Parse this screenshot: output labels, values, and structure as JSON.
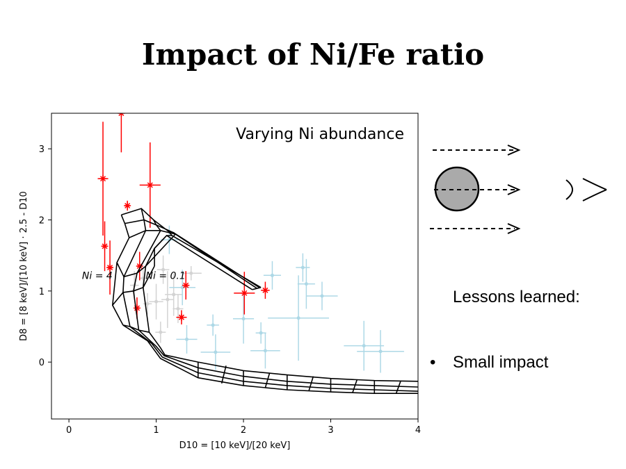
{
  "slide": {
    "title": "Impact of Ni/Fe ratio",
    "lessons_heading": "Lessons learned:",
    "bullets": [
      "Small impact"
    ],
    "bullet_glyph": "•"
  },
  "diagram": {
    "icons": [
      "dashed-arrow-icon",
      "dashed-arrow-icon",
      "dashed-arrow-icon",
      "sphere-icon",
      "eye-icon"
    ],
    "sphere_color": "#aaaaaa"
  },
  "chart_data": {
    "type": "scatter",
    "title": "Varying Ni abundance",
    "xlabel": "D10 = [10 keV]/[20 keV]",
    "ylabel": "D8 = [8 keV]/[10 keV] · 2.5 - D10",
    "xlim": [
      -0.2,
      4.0
    ],
    "ylim": [
      -0.8,
      3.5
    ],
    "xticks": [
      "0",
      "1",
      "2",
      "3",
      "4"
    ],
    "yticks": [
      "0",
      "1",
      "2",
      "3"
    ],
    "annotations": [
      {
        "text": "Ni = 4",
        "x": 0.15,
        "y": 1.22
      },
      {
        "text": "Ni = 0.1",
        "x": 0.88,
        "y": 1.22
      }
    ],
    "colors": {
      "red": "#ff0000",
      "lightblue": "#add8e6",
      "gray": "#d3d3d3",
      "grid": "#000000"
    },
    "series": [
      {
        "color": "red",
        "points": [
          {
            "x": 0.6,
            "y": 3.5,
            "xerr": 0,
            "yerr": 0.55
          },
          {
            "x": 0.39,
            "y": 2.58,
            "xerr": 0.06,
            "yerr": 0.8
          },
          {
            "x": 0.67,
            "y": 2.2,
            "xerr": 0.03,
            "yerr": 0.07
          },
          {
            "x": 0.93,
            "y": 2.49,
            "xerr": 0.12,
            "yerr": 0.6
          },
          {
            "x": 0.41,
            "y": 1.63,
            "xerr": 0.03,
            "yerr": 0.35
          },
          {
            "x": 0.47,
            "y": 1.33,
            "xerr": 0.03,
            "yerr": 0.38
          },
          {
            "x": 0.81,
            "y": 1.35,
            "xerr": 0.03,
            "yerr": 0.2
          },
          {
            "x": 1.34,
            "y": 1.08,
            "xerr": 0.04,
            "yerr": 0.2
          },
          {
            "x": 0.78,
            "y": 0.76,
            "xerr": 0.03,
            "yerr": 0.15
          },
          {
            "x": 1.29,
            "y": 0.63,
            "xerr": 0.06,
            "yerr": 0.1
          },
          {
            "x": 2.01,
            "y": 0.97,
            "xerr": 0.12,
            "yerr": 0.3
          },
          {
            "x": 2.25,
            "y": 1.01,
            "xerr": 0.05,
            "yerr": 0.12
          }
        ]
      },
      {
        "color": "lightblue",
        "points": [
          {
            "x": 1.15,
            "y": 1.72,
            "xerr": 0.1,
            "yerr": 0.2
          },
          {
            "x": 1.3,
            "y": 1.05,
            "xerr": 0.15,
            "yerr": 0.25
          },
          {
            "x": 1.35,
            "y": 0.32,
            "xerr": 0.12,
            "yerr": 0.2
          },
          {
            "x": 1.65,
            "y": 0.52,
            "xerr": 0.07,
            "yerr": 0.15
          },
          {
            "x": 1.68,
            "y": 0.14,
            "xerr": 0.17,
            "yerr": 0.25
          },
          {
            "x": 2.0,
            "y": 0.61,
            "xerr": 0.12,
            "yerr": 0.35
          },
          {
            "x": 2.2,
            "y": 0.41,
            "xerr": 0.06,
            "yerr": 0.15
          },
          {
            "x": 2.25,
            "y": 0.16,
            "xerr": 0.17,
            "yerr": 0.25
          },
          {
            "x": 2.33,
            "y": 1.22,
            "xerr": 0.1,
            "yerr": 0.2
          },
          {
            "x": 2.63,
            "y": 0.62,
            "xerr": 0.35,
            "yerr": 0.6
          },
          {
            "x": 2.68,
            "y": 1.33,
            "xerr": 0.08,
            "yerr": 0.2
          },
          {
            "x": 2.72,
            "y": 1.1,
            "xerr": 0.1,
            "yerr": 0.35
          },
          {
            "x": 2.9,
            "y": 0.93,
            "xerr": 0.18,
            "yerr": 0.2
          },
          {
            "x": 3.38,
            "y": 0.23,
            "xerr": 0.23,
            "yerr": 0.35
          },
          {
            "x": 3.57,
            "y": 0.15,
            "xerr": 0.27,
            "yerr": 0.3
          }
        ]
      },
      {
        "color": "gray",
        "points": [
          {
            "x": 0.9,
            "y": 0.82,
            "xerr": 0.05,
            "yerr": 0.15
          },
          {
            "x": 1.0,
            "y": 0.85,
            "xerr": 0.08,
            "yerr": 0.25
          },
          {
            "x": 1.08,
            "y": 1.3,
            "xerr": 0.07,
            "yerr": 0.2
          },
          {
            "x": 1.13,
            "y": 0.88,
            "xerr": 0.07,
            "yerr": 0.4
          },
          {
            "x": 1.2,
            "y": 0.95,
            "xerr": 0.1,
            "yerr": 0.3
          },
          {
            "x": 1.25,
            "y": 0.75,
            "xerr": 0.06,
            "yerr": 0.2
          },
          {
            "x": 1.05,
            "y": 0.42,
            "xerr": 0.06,
            "yerr": 0.15
          },
          {
            "x": 0.75,
            "y": 1.08,
            "xerr": 0.05,
            "yerr": 0.2
          },
          {
            "x": 0.85,
            "y": 1.18,
            "xerr": 0.04,
            "yerr": 0.15
          },
          {
            "x": 1.4,
            "y": 1.25,
            "xerr": 0.12,
            "yerr": 0.1
          }
        ]
      }
    ],
    "model_grid": {
      "rows": [
        [
          [
            0.6,
            2.07
          ],
          [
            0.83,
            2.16
          ],
          [
            0.97,
            2.0
          ],
          [
            1.14,
            1.84
          ],
          [
            1.18,
            1.78
          ],
          [
            2.2,
            1.05
          ]
        ],
        [
          [
            0.64,
            1.95
          ],
          [
            0.86,
            2.0
          ],
          [
            1.0,
            1.93
          ],
          [
            1.2,
            1.82
          ],
          [
            2.18,
            1.05
          ]
        ],
        [
          [
            0.69,
            1.75
          ],
          [
            0.88,
            1.85
          ],
          [
            1.05,
            1.85
          ],
          [
            1.22,
            1.8
          ],
          [
            2.15,
            1.04
          ]
        ],
        [
          [
            0.55,
            1.4
          ],
          [
            0.63,
            1.2
          ],
          [
            0.78,
            1.25
          ],
          [
            0.88,
            1.35
          ],
          [
            0.98,
            1.6
          ],
          [
            1.12,
            1.78
          ],
          [
            2.1,
            1.02
          ]
        ],
        [
          [
            0.5,
            0.8
          ],
          [
            0.62,
            0.98
          ],
          [
            0.74,
            1.0
          ],
          [
            0.85,
            1.05
          ],
          [
            0.98,
            1.35
          ]
        ],
        [
          [
            0.62,
            0.52
          ],
          [
            0.7,
            0.5
          ],
          [
            0.8,
            0.45
          ],
          [
            0.92,
            0.42
          ]
        ],
        [
          [
            0.62,
            0.52
          ],
          [
            0.9,
            0.3
          ],
          [
            1.05,
            0.05
          ],
          [
            1.48,
            -0.22
          ],
          [
            2.0,
            -0.33
          ],
          [
            2.5,
            -0.39
          ],
          [
            3.0,
            -0.42
          ],
          [
            3.5,
            -0.44
          ],
          [
            4.0,
            -0.44
          ]
        ],
        [
          [
            0.7,
            0.5
          ],
          [
            0.95,
            0.26
          ],
          [
            1.07,
            0.07
          ],
          [
            1.48,
            -0.15
          ],
          [
            2.0,
            -0.27
          ],
          [
            2.5,
            -0.33
          ],
          [
            3.0,
            -0.37
          ],
          [
            3.5,
            -0.39
          ],
          [
            4.0,
            -0.41
          ]
        ],
        [
          [
            0.8,
            0.45
          ],
          [
            1.0,
            0.22
          ],
          [
            1.09,
            0.09
          ],
          [
            1.48,
            -0.08
          ],
          [
            2.0,
            -0.2
          ],
          [
            2.5,
            -0.27
          ],
          [
            3.0,
            -0.31
          ],
          [
            3.5,
            -0.33
          ],
          [
            4.0,
            -0.35
          ]
        ],
        [
          [
            0.92,
            0.42
          ],
          [
            1.05,
            0.2
          ],
          [
            1.1,
            0.1
          ],
          [
            1.48,
            0.0
          ],
          [
            2.0,
            -0.12
          ],
          [
            2.5,
            -0.18
          ],
          [
            3.0,
            -0.23
          ],
          [
            3.5,
            -0.26
          ],
          [
            4.0,
            -0.27
          ]
        ]
      ],
      "cols": [
        [
          [
            0.6,
            2.07
          ],
          [
            0.64,
            1.95
          ],
          [
            0.69,
            1.75
          ],
          [
            0.55,
            1.4
          ],
          [
            0.5,
            0.8
          ],
          [
            0.62,
            0.52
          ]
        ],
        [
          [
            0.83,
            2.16
          ],
          [
            0.86,
            2.0
          ],
          [
            0.88,
            1.85
          ],
          [
            0.63,
            1.2
          ],
          [
            0.62,
            0.98
          ],
          [
            0.7,
            0.5
          ]
        ],
        [
          [
            0.97,
            2.0
          ],
          [
            1.0,
            1.93
          ],
          [
            1.05,
            1.85
          ],
          [
            0.78,
            1.25
          ],
          [
            0.74,
            1.0
          ],
          [
            0.8,
            0.45
          ]
        ],
        [
          [
            1.14,
            1.84
          ],
          [
            1.2,
            1.82
          ],
          [
            1.22,
            1.8
          ],
          [
            0.88,
            1.35
          ],
          [
            0.85,
            1.05
          ],
          [
            0.92,
            0.42
          ]
        ],
        [
          [
            1.18,
            1.78
          ],
          [
            1.12,
            1.78
          ],
          [
            0.98,
            1.6
          ],
          [
            0.98,
            1.35
          ]
        ],
        [
          [
            2.2,
            1.05
          ],
          [
            2.1,
            1.02
          ]
        ],
        [
          [
            1.48,
            -0.22
          ],
          [
            1.48,
            0.0
          ]
        ],
        [
          [
            2.0,
            -0.33
          ],
          [
            2.0,
            -0.12
          ]
        ],
        [
          [
            2.5,
            -0.39
          ],
          [
            2.5,
            -0.18
          ]
        ],
        [
          [
            3.0,
            -0.42
          ],
          [
            3.0,
            -0.23
          ]
        ],
        [
          [
            3.5,
            -0.44
          ],
          [
            3.5,
            -0.26
          ]
        ],
        [
          [
            1.75,
            -0.3
          ],
          [
            1.8,
            -0.05
          ]
        ],
        [
          [
            2.25,
            -0.36
          ],
          [
            2.3,
            -0.15
          ]
        ],
        [
          [
            2.75,
            -0.4
          ],
          [
            2.8,
            -0.2
          ]
        ],
        [
          [
            3.25,
            -0.43
          ],
          [
            3.3,
            -0.25
          ]
        ],
        [
          [
            3.75,
            -0.44
          ],
          [
            3.8,
            -0.27
          ]
        ]
      ]
    }
  }
}
